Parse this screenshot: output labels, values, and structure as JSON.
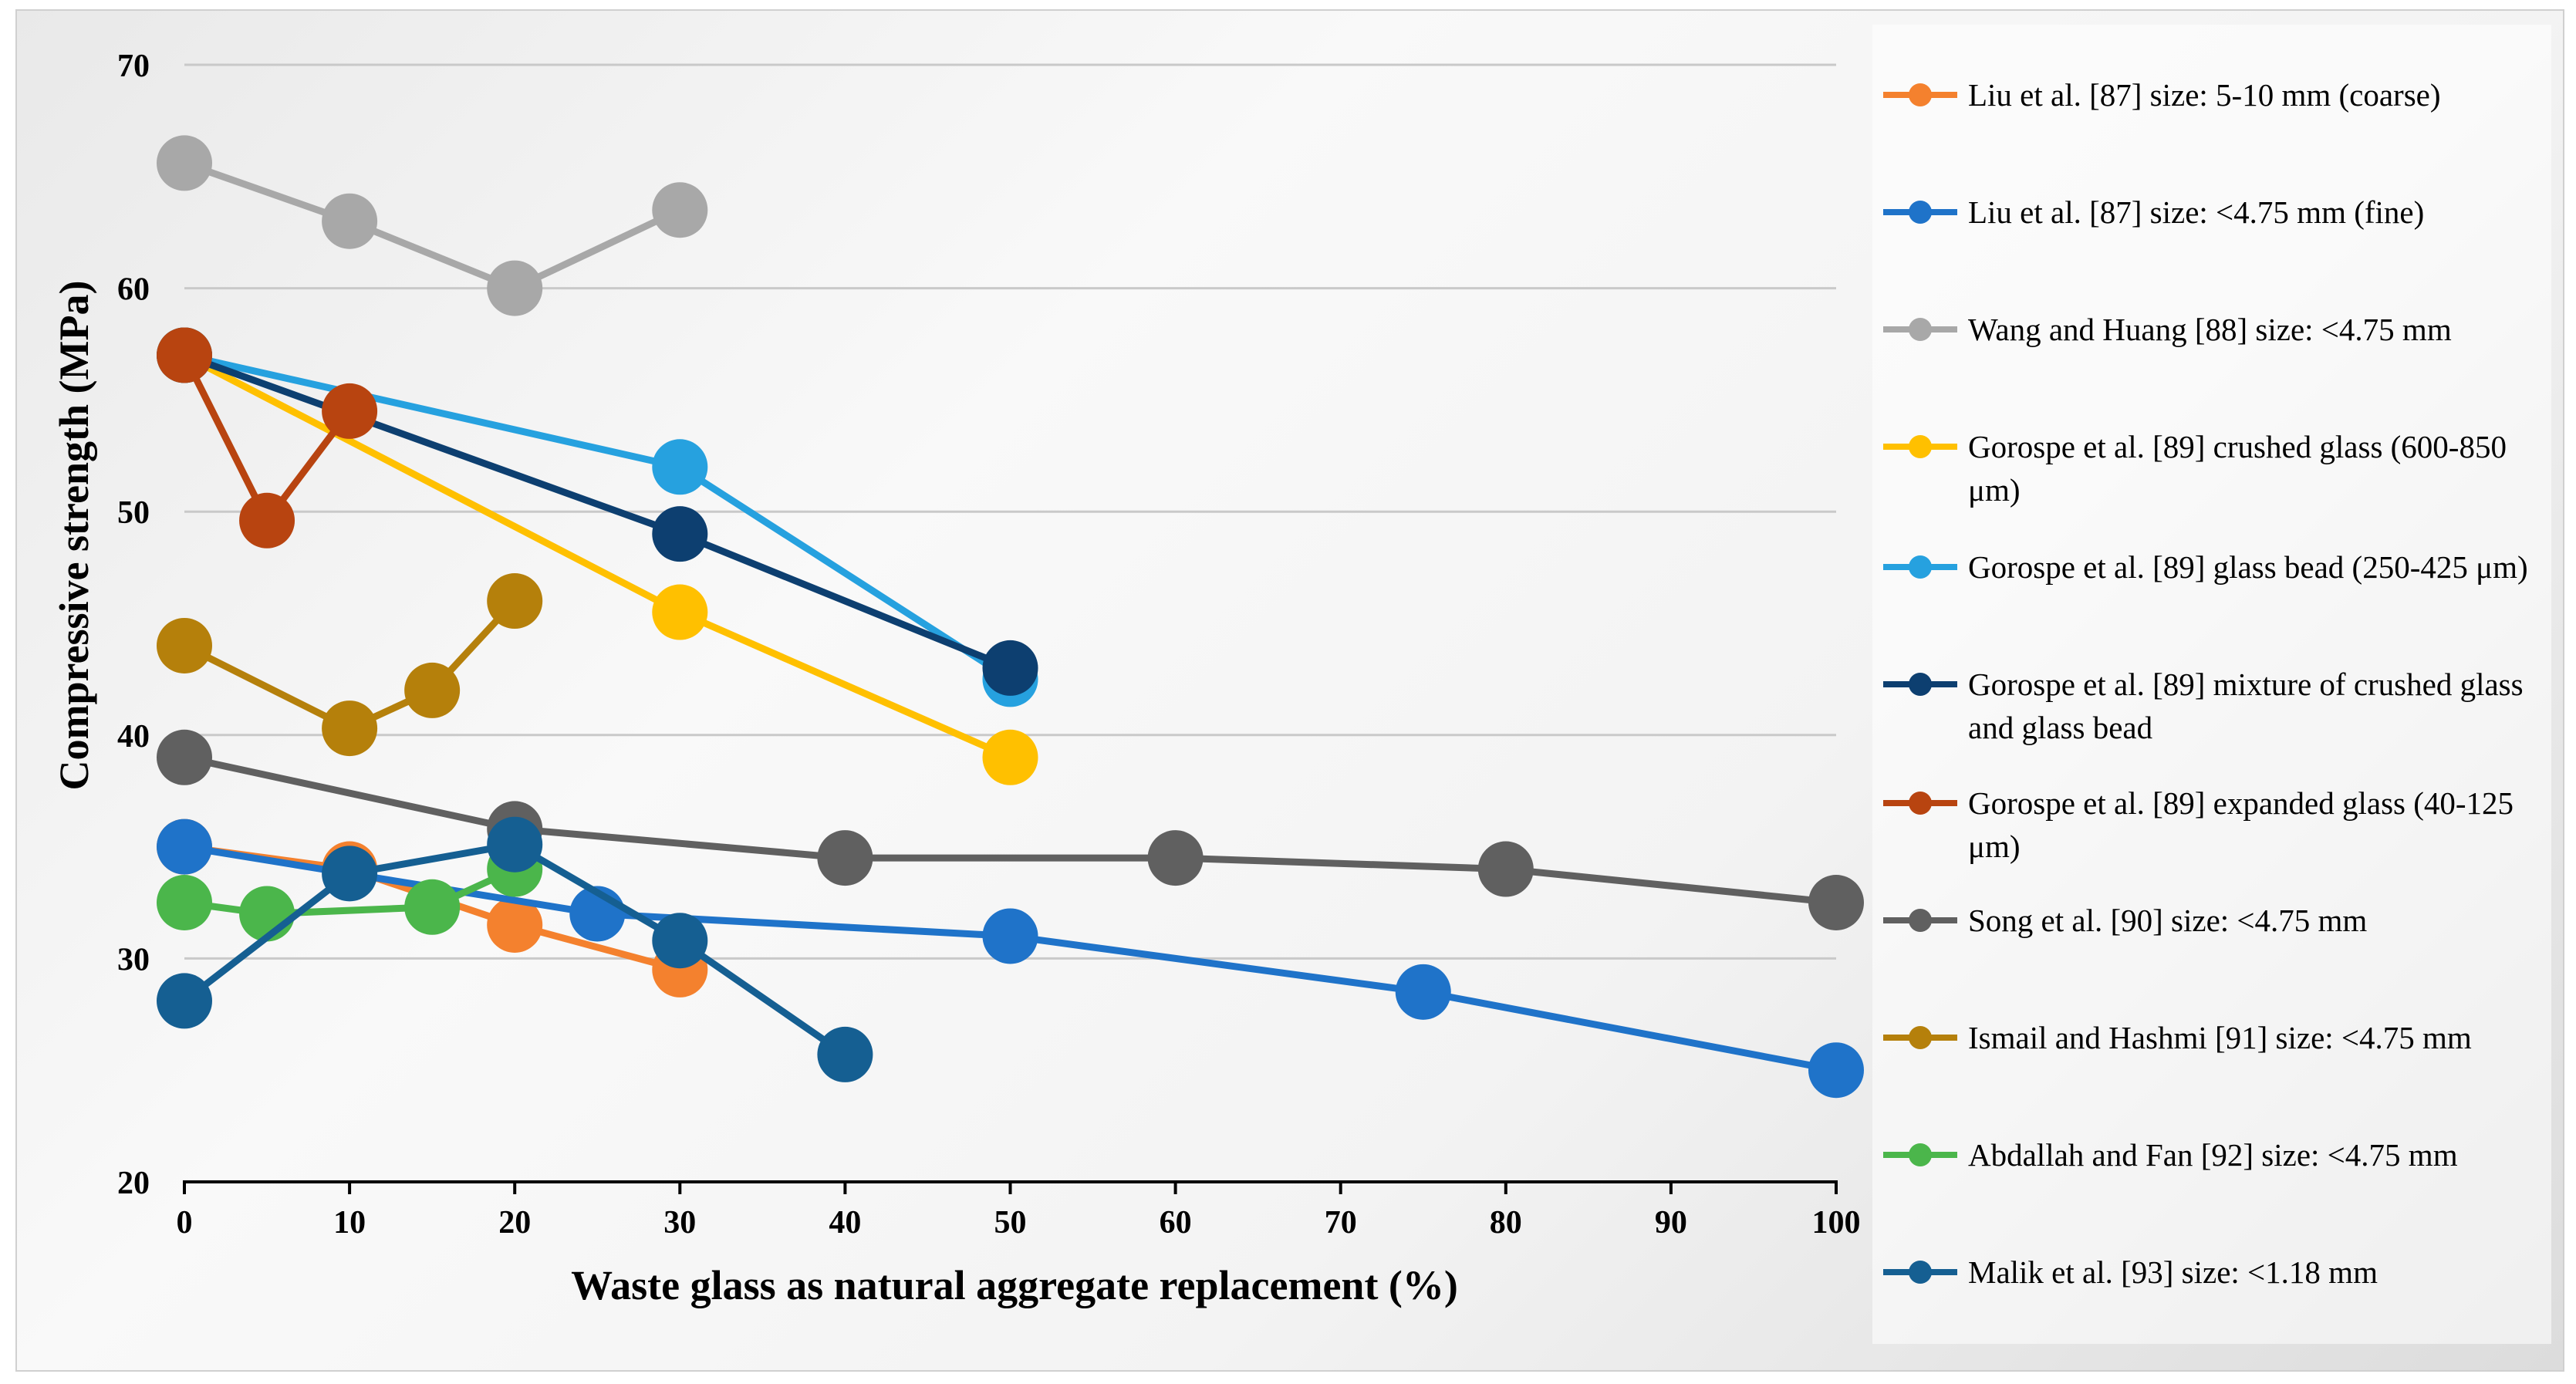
{
  "chart_data": {
    "type": "line",
    "xlabel": "Waste glass as natural aggregate replacement (%)",
    "ylabel": "Compressive strength (MPa)",
    "xlim": [
      0,
      100
    ],
    "ylim": [
      20,
      70
    ],
    "x_ticks": [
      0,
      10,
      20,
      30,
      40,
      50,
      60,
      70,
      80,
      90,
      100
    ],
    "y_ticks": [
      20,
      30,
      40,
      50,
      60,
      70
    ],
    "grid": "horizontal",
    "legend_position": "right",
    "series": [
      {
        "name": "Liu et al. [87] size: 5-10 mm (coarse)",
        "color": "#f4812e",
        "x": [
          0,
          10,
          20,
          30
        ],
        "y": [
          35,
          34,
          31.5,
          29.5
        ]
      },
      {
        "name": "Liu et al. [87] size: <4.75 mm (fine)",
        "color": "#1f73c9",
        "x": [
          0,
          25,
          50,
          75,
          100
        ],
        "y": [
          35,
          32,
          31,
          28.5,
          25
        ]
      },
      {
        "name": "Wang and Huang [88] size: <4.75 mm",
        "color": "#a8a8a8",
        "x": [
          0,
          10,
          20,
          30
        ],
        "y": [
          65.6,
          63,
          60,
          63.5
        ]
      },
      {
        "name": "Gorospe et al. [89] crushed glass (600-850 μm)",
        "color": "#ffc000",
        "x": [
          0,
          30,
          50
        ],
        "y": [
          57,
          45.5,
          39
        ]
      },
      {
        "name": "Gorospe et al. [89] glass bead (250-425 μm)",
        "color": "#26a1df",
        "x": [
          0,
          30,
          50
        ],
        "y": [
          57,
          52,
          42.5
        ]
      },
      {
        "name": "Gorospe et al. [89] mixture of crushed glass and glass bead",
        "color": "#0d3f70",
        "x": [
          0,
          30,
          50
        ],
        "y": [
          57,
          49,
          43
        ]
      },
      {
        "name": "Gorospe et al. [89] expanded glass (40-125 μm)",
        "color": "#b84410",
        "x": [
          0,
          5,
          10
        ],
        "y": [
          57,
          49.6,
          54.5
        ]
      },
      {
        "name": "Song et al. [90] size: <4.75 mm",
        "color": "#606060",
        "x": [
          0,
          20,
          40,
          60,
          80,
          100
        ],
        "y": [
          39,
          35.8,
          34.5,
          34.5,
          34,
          32.5
        ]
      },
      {
        "name": "Ismail and Hashmi [91] size: <4.75 mm",
        "color": "#b5800b",
        "x": [
          0,
          10,
          15,
          20
        ],
        "y": [
          44,
          40.3,
          42,
          46
        ]
      },
      {
        "name": "Abdallah and Fan [92] size: <4.75 mm",
        "color": "#4bb64b",
        "x": [
          0,
          5,
          15,
          20
        ],
        "y": [
          32.5,
          32,
          32.3,
          34
        ]
      },
      {
        "name": "Malik et al. [93] size: <1.18 mm",
        "color": "#155f92",
        "x": [
          0,
          10,
          20,
          30,
          40
        ],
        "y": [
          28.1,
          33.8,
          35.1,
          30.8,
          25.7
        ]
      }
    ]
  }
}
